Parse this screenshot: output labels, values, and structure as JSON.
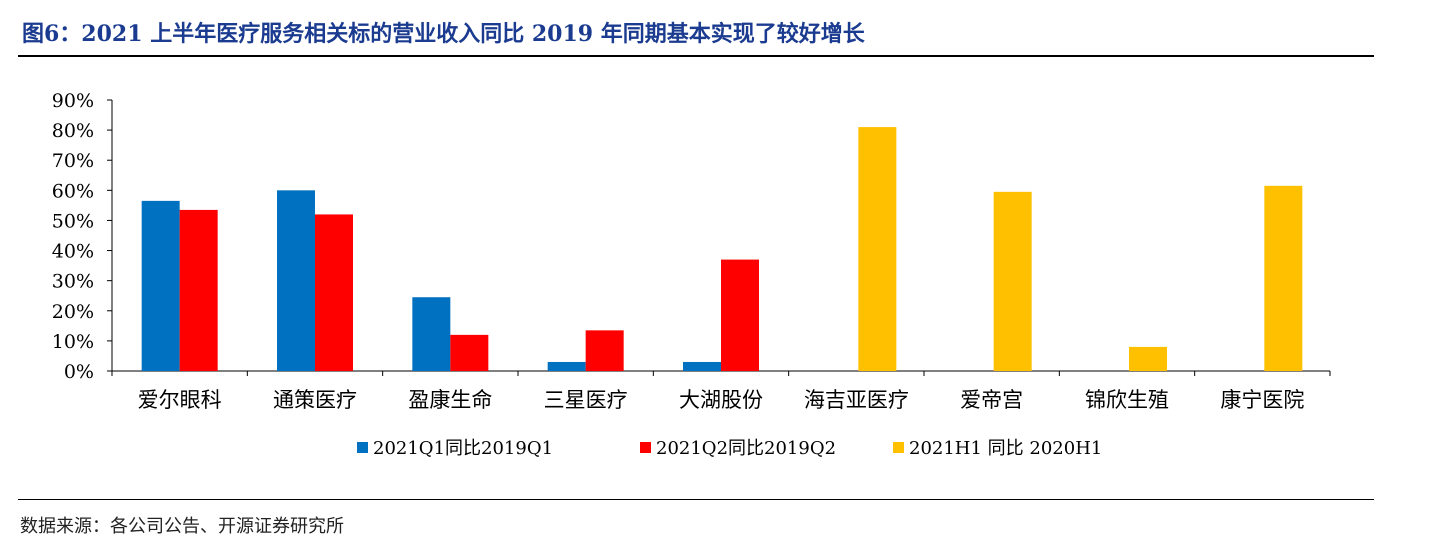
{
  "figure": {
    "title": "图6：2021 上半年医疗服务相关标的营业收入同比 2019 年同期基本实现了较好增长",
    "source": "数据来源：各公司公告、开源证券研究所"
  },
  "colors": {
    "title": "#1a3b8f",
    "series_blue": "#0070c0",
    "series_red": "#ff0000",
    "series_yellow": "#ffc000"
  },
  "chart_data": {
    "type": "bar",
    "categories": [
      "爱尔眼科",
      "通策医疗",
      "盈康生命",
      "三星医疗",
      "大湖股份",
      "海吉亚医疗",
      "爱帝宫",
      "锦欣生殖",
      "康宁医院"
    ],
    "series": [
      {
        "name": "2021Q1同比2019Q1",
        "color": "#0070c0",
        "values": [
          56.5,
          60.0,
          24.5,
          3.0,
          3.0,
          null,
          null,
          null,
          null
        ]
      },
      {
        "name": "2021Q2同比2019Q2",
        "color": "#ff0000",
        "values": [
          53.5,
          52.0,
          12.0,
          13.5,
          37.0,
          null,
          null,
          null,
          null
        ]
      },
      {
        "name": "2021H1 同比 2020H1",
        "color": "#ffc000",
        "values": [
          null,
          null,
          null,
          null,
          null,
          81.0,
          59.5,
          8.0,
          61.5
        ]
      }
    ],
    "yticks": [
      "0%",
      "10%",
      "20%",
      "30%",
      "40%",
      "50%",
      "60%",
      "70%",
      "80%",
      "90%"
    ],
    "ylim": [
      0,
      90
    ],
    "y_unit": "%",
    "grid": false,
    "legend_position": "bottom"
  }
}
